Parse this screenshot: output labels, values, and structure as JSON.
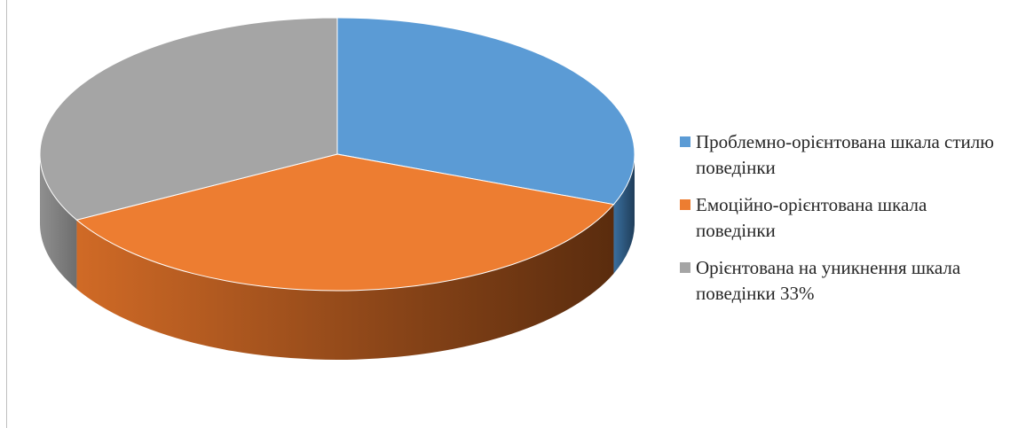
{
  "chart_data": {
    "type": "pie",
    "style": "3d",
    "title": "",
    "categories": [
      "Проблемно-орієнтована шкала стилю поведінки",
      "Емоційно-орієнтована шкала поведінки",
      "Орієнтована на уникнення шкала поведінки 33%"
    ],
    "values": [
      31,
      36,
      33
    ],
    "unit": "%",
    "colors": [
      "#5b9bd5",
      "#ed7d31",
      "#a5a5a5"
    ],
    "legend": {
      "position": "right",
      "entries": [
        {
          "label": "Проблемно-орієнтована шкала стилю поведінки",
          "color": "#5b9bd5"
        },
        {
          "label": "Емоційно-орієнтована шкала поведінки",
          "color": "#ed7d31"
        },
        {
          "label": "Орієнтована на уникнення шкала поведінки 33%",
          "color": "#a5a5a5"
        }
      ]
    }
  }
}
